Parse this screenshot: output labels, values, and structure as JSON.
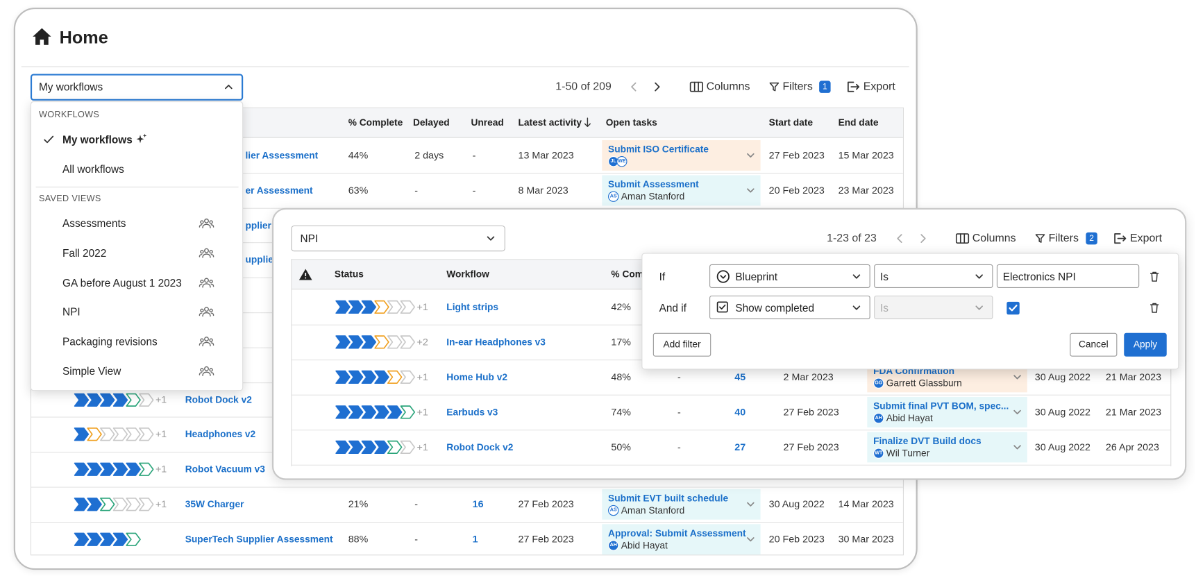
{
  "header": {
    "title": "Home"
  },
  "main": {
    "view": "My workflows",
    "pagination": "1-50 of 209",
    "toolbar": {
      "columns": "Columns",
      "filters": "Filters",
      "filter_count": 1,
      "export": "Export"
    },
    "table": {
      "columns": [
        "% Complete",
        "Delayed",
        "Unread",
        "Latest activity",
        "Open tasks",
        "Start date",
        "End date"
      ],
      "rows": [
        {
          "workflow": "lier Assessment",
          "complete": "44%",
          "delayed": "2 days",
          "unread": "-",
          "latest": "13 Mar 2023",
          "task": "Submit ISO Certificate",
          "avatars": [
            "JL",
            "WE"
          ],
          "start": "27 Feb 2023",
          "end": "15 Mar 2023"
        },
        {
          "workflow": "er Assessment",
          "complete": "63%",
          "delayed": "-",
          "unread": "-",
          "latest": "8 Mar 2023",
          "task": "Submit Assessment",
          "avatars": [
            "AS"
          ],
          "assignee": "Aman Stanford",
          "start": "20 Feb 2023",
          "end": "23 Mar 2023"
        },
        {
          "workflow": "pplier A"
        },
        {
          "workflow": "upplier"
        },
        {
          "workflow": "Robot Dock v2",
          "more": "+1"
        },
        {
          "workflow": "Headphones v2",
          "more": "+1"
        },
        {
          "workflow": "Robot Vacuum v3",
          "more": "+1"
        },
        {
          "workflow": "35W Charger",
          "more": "+1",
          "complete": "21%",
          "delayed": "-",
          "unread": 16,
          "latest": "27 Feb 2023",
          "task": "Submit EVT built schedule",
          "avatars": [
            "AS"
          ],
          "assignee": "Aman Stanford",
          "start": "30 Aug 2022",
          "end": "14 Mar 2023"
        },
        {
          "workflow": "SuperTech Supplier Assessment",
          "complete": "88%",
          "delayed": "-",
          "unread": 1,
          "latest": "27 Feb 2023",
          "task": "Approval: Submit Assessment",
          "avatars": [
            "AH"
          ],
          "assignee": "Abid Hayat",
          "start": "20 Feb 2023",
          "end": "30 Mar 2023"
        }
      ]
    }
  },
  "menu": {
    "sections": [
      {
        "heading": "WORKFLOWS",
        "items": [
          "My workflows",
          "All workflows"
        ]
      },
      {
        "heading": "SAVED VIEWS",
        "items": [
          "Assessments",
          "Fall 2022",
          "GA before August 1 2023",
          "NPI",
          "Packaging revisions",
          "Simple View"
        ]
      }
    ]
  },
  "npi": {
    "view": "NPI",
    "pagination": "1-23 of 23",
    "toolbar": {
      "columns": "Columns",
      "filters": "Filters",
      "filter_count": 2,
      "export": "Export"
    },
    "table": {
      "columns": [
        "Status",
        "Workflow",
        "% Com"
      ],
      "rows": [
        {
          "workflow": "Light strips",
          "more": "+1",
          "complete": "42%"
        },
        {
          "workflow": "In-ear Headphones v3",
          "more": "+2",
          "complete": "17%"
        },
        {
          "workflow": "Home Hub v2",
          "more": "+1",
          "complete": "48%",
          "delayed": "-",
          "unread": 45,
          "latest": "2 Mar 2023",
          "task": "FDA Confirmation",
          "avatars": [
            "GG"
          ],
          "assignee": "Garrett Glassburn",
          "start": "30 Aug 2022",
          "end": "21 Mar 2023"
        },
        {
          "workflow": "Earbuds v3",
          "more": "+1",
          "complete": "74%",
          "delayed": "-",
          "unread": 40,
          "latest": "27 Feb 2023",
          "task": "Submit final PVT BOM, spec...",
          "avatars": [
            "AH"
          ],
          "assignee": "Abid Hayat",
          "start": "30 Aug 2022",
          "end": "21 Mar 2023"
        },
        {
          "workflow": "Robot Dock v2",
          "more": "+1",
          "complete": "50%",
          "delayed": "-",
          "unread": 27,
          "latest": "27 Feb 2023",
          "task": "Finalize DVT Build docs",
          "avatars": [
            "WT"
          ],
          "assignee": "Wil Turner",
          "start": "30 Aug 2022",
          "end": "26 Apr 2023"
        }
      ]
    }
  },
  "filter": {
    "rows": [
      {
        "label": "If",
        "field": "Blueprint",
        "operator": "Is",
        "value": "Electronics NPI"
      },
      {
        "label": "And if",
        "field": "Show completed",
        "operator": "Is"
      }
    ],
    "add": "Add filter",
    "cancel": "Cancel",
    "apply": "Apply"
  }
}
